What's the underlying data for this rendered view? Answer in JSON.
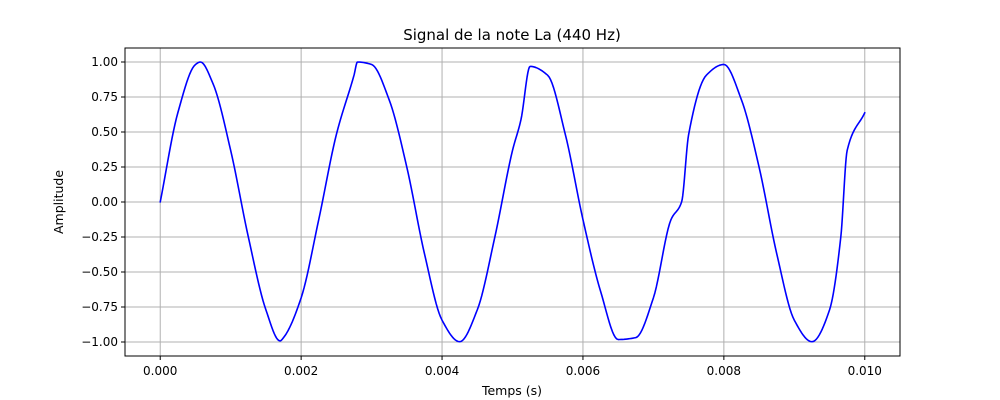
{
  "chart_data": {
    "type": "line",
    "title": "Signal de la note La (440 Hz)",
    "xlabel": "Temps (s)",
    "ylabel": "Amplitude",
    "xlim": [
      -0.0005,
      0.0105
    ],
    "ylim": [
      -1.1,
      1.1
    ],
    "x_ticks": [
      0.0,
      0.002,
      0.004,
      0.006,
      0.008,
      0.01
    ],
    "x_tick_labels": [
      "0.000",
      "0.002",
      "0.004",
      "0.006",
      "0.008",
      "0.010"
    ],
    "y_ticks": [
      1.0,
      0.75,
      0.5,
      0.25,
      0.0,
      -0.25,
      -0.5,
      -0.75,
      -1.0
    ],
    "y_tick_labels": [
      "1.00",
      "0.75",
      "0.50",
      "0.25",
      "0.00",
      "−0.25",
      "−0.50",
      "−0.75",
      "−1.00"
    ],
    "grid": true,
    "line_color": "#0000ff",
    "grid_color": "#b0b0b0",
    "series": [
      {
        "x": [
          0.0,
          0.00025,
          0.0005,
          0.00057,
          0.00075,
          0.001,
          0.00125,
          0.0015,
          0.0017,
          0.00175,
          0.002,
          0.00225,
          0.0025,
          0.00275,
          0.0028,
          0.003,
          0.00325,
          0.0035,
          0.00375,
          0.004,
          0.00425,
          0.0045,
          0.00475,
          0.005,
          0.00512,
          0.00525,
          0.0055,
          0.00575,
          0.006,
          0.00625,
          0.0065,
          0.00675,
          0.007,
          0.00725,
          0.0074,
          0.0075,
          0.00775,
          0.008,
          0.00825,
          0.0085,
          0.00875,
          0.009,
          0.00925,
          0.0095,
          0.00966,
          0.00975,
          0.01
        ],
        "y": [
          0.0,
          0.6374,
          0.982,
          1.0,
          0.8443,
          0.3681,
          -0.2487,
          -0.7705,
          -0.9921,
          -0.9686,
          -0.6845,
          -0.1253,
          0.4818,
          0.9048,
          1.0,
          0.9823,
          0.729,
          0.2487,
          -0.3681,
          -0.8443,
          -0.998,
          -0.7705,
          -0.2487,
          0.3681,
          0.5878,
          0.9686,
          0.9048,
          0.4818,
          -0.1253,
          -0.6374,
          -0.9823,
          -0.9686,
          -0.6845,
          -0.1253,
          0.0,
          0.4818,
          0.9048,
          0.9823,
          0.729,
          0.2487,
          -0.3681,
          -0.8443,
          -0.998,
          -0.7705,
          -0.2487,
          0.3681,
          0.6374
        ]
      }
    ]
  }
}
